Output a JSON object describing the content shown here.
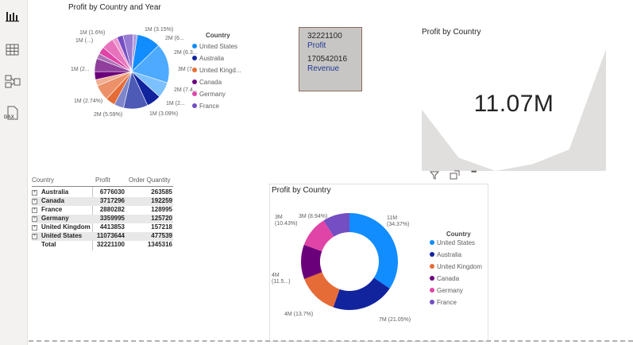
{
  "sidebar": {
    "items": [
      {
        "name": "report-view",
        "icon": "bar-chart-icon"
      },
      {
        "name": "data-view",
        "icon": "table-icon"
      },
      {
        "name": "model-view",
        "icon": "model-icon"
      },
      {
        "name": "dax-view",
        "icon": "dax-query-icon",
        "label": "DAX"
      }
    ]
  },
  "pie_chart": {
    "title": "Profit by Country and Year",
    "legend_title": "Country",
    "legend": [
      "United States",
      "Australia",
      "United Kingd...",
      "Canada",
      "Germany",
      "France"
    ],
    "labels": [
      "1M (3.15%)",
      "2M (6...",
      "2M (6.3...",
      "3M (7...",
      "2M (7.4...",
      "1M (2...",
      "1M (3.09%)",
      "2M (5.59%)",
      "1M (2.74%)",
      "1M (2...",
      "1M (1.6%)",
      "1M (...)"
    ]
  },
  "card": {
    "profit_value": "32221100",
    "profit_label": "Profit",
    "revenue_value": "170542016",
    "revenue_label": "Revenue"
  },
  "kpi": {
    "title": "Profit by Country",
    "value": "11.07M",
    "trend": [
      0.46,
      0.1,
      0.0,
      0.05,
      0.16,
      0.91
    ]
  },
  "toolbar": {
    "filter_icon": "filter-icon",
    "focus_icon": "focus-mode-icon",
    "more_label": "•••"
  },
  "table": {
    "headers": [
      "Country",
      "Profit",
      "Order Quantity"
    ],
    "rows": [
      {
        "country": "Australia",
        "profit": "6776030",
        "qty": "263585",
        "expander": "⊞"
      },
      {
        "country": "Canada",
        "profit": "3717296",
        "qty": "192259",
        "expander": "⊞"
      },
      {
        "country": "France",
        "profit": "2880282",
        "qty": "128995",
        "expander": "⊞"
      },
      {
        "country": "Germany",
        "profit": "3359995",
        "qty": "125720",
        "expander": "⊞"
      },
      {
        "country": "United Kingdom",
        "profit": "4413853",
        "qty": "157218",
        "expander": "⊞"
      },
      {
        "country": "United States",
        "profit": "11073644",
        "qty": "477539",
        "expander": "⊞"
      }
    ],
    "total": {
      "label": "Total",
      "profit": "32221100",
      "qty": "1345316"
    }
  },
  "donut_chart": {
    "title": "Profit by Country",
    "legend_title": "Country",
    "legend": [
      "United States",
      "Australia",
      "United Kingdom",
      "Canada",
      "Germany",
      "France"
    ],
    "labels": [
      {
        "top": "11M",
        "bottom": "(34.37%)"
      },
      {
        "top": "7M (21.05%)",
        "bottom": ""
      },
      {
        "top": "4M (13.7%)",
        "bottom": ""
      },
      {
        "top": "4M",
        "bottom": "(11.5...)"
      },
      {
        "top": "3M",
        "bottom": "(10.43%)"
      },
      {
        "top": "3M (8.94%)",
        "bottom": ""
      }
    ]
  },
  "colors": {
    "united_states": "#118DFF",
    "australia": "#12239E",
    "united_kingdom": "#E66C37",
    "canada": "#6B007B",
    "germany": "#E044A7",
    "france": "#744EC2",
    "extra1": "#D9B300",
    "extra2": "#D64550",
    "card_bg": "#C8C6C4",
    "card_text_blue": "#1F3A93"
  },
  "chart_data": [
    {
      "type": "pie",
      "title": "Profit by Country and Year",
      "categories": [
        "United States",
        "Australia",
        "United Kingdom",
        "Canada",
        "Germany",
        "France"
      ],
      "values": [
        11073644,
        6776030,
        4413853,
        3717296,
        3359995,
        2880282
      ]
    },
    {
      "type": "pie",
      "title": "Profit by Country",
      "categories": [
        "United States",
        "Australia",
        "United Kingdom",
        "Canada",
        "Germany",
        "France"
      ],
      "values": [
        34.37,
        21.05,
        13.7,
        11.51,
        10.43,
        8.94
      ]
    }
  ]
}
